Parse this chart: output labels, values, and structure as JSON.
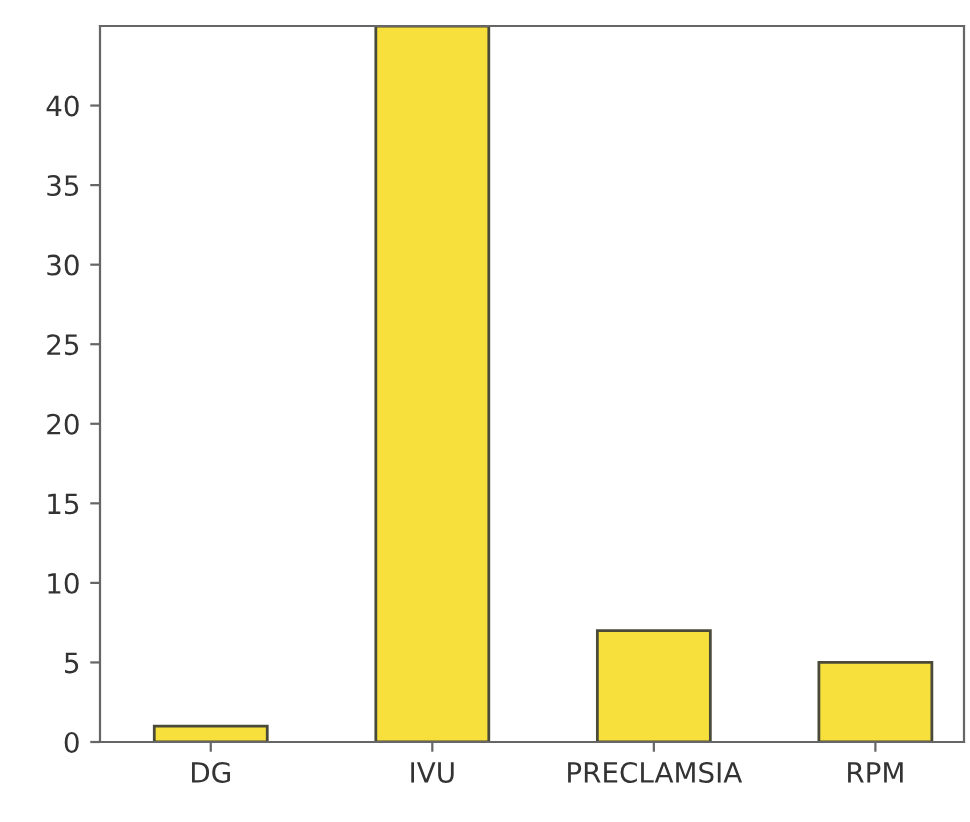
{
  "chart_data": {
    "type": "bar",
    "categories": [
      "DG",
      "IVU",
      "PRECLAMSIA",
      "RPM"
    ],
    "values": [
      1,
      45,
      7,
      5
    ],
    "color": "#f7e03c",
    "ylim": [
      0,
      45
    ],
    "yticks": [
      0,
      5,
      10,
      15,
      20,
      25,
      30,
      35,
      40
    ],
    "grid": false,
    "legend": false
  }
}
